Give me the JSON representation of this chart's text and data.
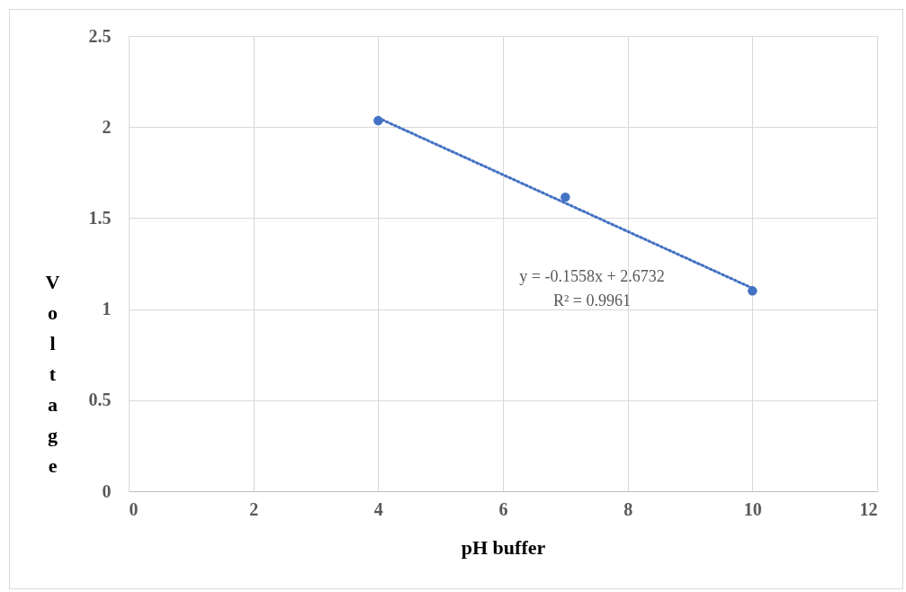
{
  "chart_data": {
    "type": "scatter",
    "xlabel": "pH buffer",
    "ylabel": "Voltage",
    "xlim": [
      0,
      12
    ],
    "xticks": [
      0,
      2,
      4,
      6,
      8,
      10,
      12
    ],
    "ylim": [
      0,
      2.5
    ],
    "yticks": [
      0,
      0.5,
      1,
      1.5,
      2,
      2.5
    ],
    "grid": true,
    "series": [
      {
        "color": "#4472c4",
        "marker": "circle",
        "x": [
          4,
          7,
          10
        ],
        "values": [
          2.035,
          1.615,
          1.1
        ]
      },
      {
        "type": "line",
        "color": "#4472c4",
        "marker": "none",
        "line_style": "dotted",
        "x": [
          4,
          10
        ],
        "values": [
          2.05,
          1.115
        ]
      }
    ],
    "annotations": [
      "y = -0.1558x + 2.6732",
      "R² = 0.9961"
    ]
  }
}
